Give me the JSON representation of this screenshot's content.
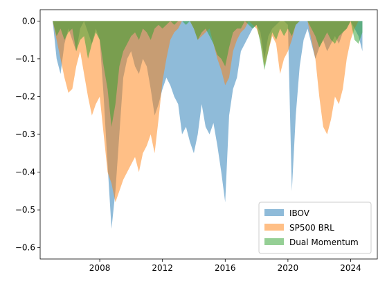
{
  "chart_data": {
    "type": "area",
    "title": "",
    "xlabel": "",
    "ylabel": "",
    "xlim": [
      2004.2,
      2025.7
    ],
    "ylim": [
      -0.63,
      0.03
    ],
    "grid": false,
    "legend_position": "lower-right",
    "x_ticks": [
      2008,
      2012,
      2016,
      2020,
      2024
    ],
    "x_tick_labels": [
      "2008",
      "2012",
      "2016",
      "2020",
      "2024"
    ],
    "y_ticks": [
      0.0,
      -0.1,
      -0.2,
      -0.3,
      -0.4,
      -0.5,
      -0.6
    ],
    "y_tick_labels": [
      "0.0",
      "−0.1",
      "−0.2",
      "−0.3",
      "−0.4",
      "−0.5",
      "−0.6"
    ],
    "x": [
      2005.0,
      2005.25,
      2005.5,
      2005.75,
      2006.0,
      2006.25,
      2006.5,
      2006.75,
      2007.0,
      2007.25,
      2007.5,
      2007.75,
      2008.0,
      2008.25,
      2008.5,
      2008.75,
      2009.0,
      2009.25,
      2009.5,
      2009.75,
      2010.0,
      2010.25,
      2010.5,
      2010.75,
      2011.0,
      2011.25,
      2011.5,
      2011.75,
      2012.0,
      2012.25,
      2012.5,
      2012.75,
      2013.0,
      2013.25,
      2013.5,
      2013.75,
      2014.0,
      2014.25,
      2014.5,
      2014.75,
      2015.0,
      2015.25,
      2015.5,
      2015.75,
      2016.0,
      2016.25,
      2016.5,
      2016.75,
      2017.0,
      2017.25,
      2017.5,
      2017.75,
      2018.0,
      2018.25,
      2018.5,
      2018.75,
      2019.0,
      2019.25,
      2019.5,
      2019.75,
      2020.0,
      2020.25,
      2020.5,
      2020.75,
      2021.0,
      2021.25,
      2021.5,
      2021.75,
      2022.0,
      2022.25,
      2022.5,
      2022.75,
      2023.0,
      2023.25,
      2023.5,
      2023.75,
      2024.0,
      2024.25,
      2024.5,
      2024.75
    ],
    "series": [
      {
        "name": "IBOV",
        "color": "#1f77b4",
        "values": [
          0.0,
          -0.1,
          -0.14,
          -0.06,
          -0.02,
          -0.05,
          -0.08,
          -0.02,
          0.0,
          -0.03,
          -0.06,
          -0.02,
          -0.05,
          -0.2,
          -0.38,
          -0.55,
          -0.45,
          -0.3,
          -0.15,
          -0.1,
          -0.08,
          -0.12,
          -0.14,
          -0.1,
          -0.12,
          -0.18,
          -0.25,
          -0.22,
          -0.18,
          -0.15,
          -0.17,
          -0.2,
          -0.22,
          -0.3,
          -0.28,
          -0.32,
          -0.35,
          -0.3,
          -0.22,
          -0.28,
          -0.3,
          -0.27,
          -0.33,
          -0.4,
          -0.48,
          -0.25,
          -0.18,
          -0.15,
          -0.08,
          -0.06,
          -0.04,
          -0.02,
          -0.01,
          -0.03,
          -0.1,
          -0.04,
          -0.02,
          -0.01,
          -0.0,
          -0.0,
          -0.01,
          -0.45,
          -0.25,
          -0.12,
          -0.05,
          -0.02,
          -0.06,
          -0.1,
          -0.07,
          -0.05,
          -0.08,
          -0.06,
          -0.04,
          -0.06,
          -0.03,
          -0.02,
          -0.0,
          -0.02,
          -0.04,
          -0.08
        ]
      },
      {
        "name": "SP500 BRL",
        "color": "#ff7f0e",
        "values": [
          0.0,
          -0.05,
          -0.1,
          -0.15,
          -0.19,
          -0.18,
          -0.12,
          -0.08,
          -0.14,
          -0.2,
          -0.25,
          -0.22,
          -0.2,
          -0.3,
          -0.4,
          -0.43,
          -0.48,
          -0.45,
          -0.42,
          -0.4,
          -0.38,
          -0.36,
          -0.4,
          -0.35,
          -0.33,
          -0.3,
          -0.35,
          -0.26,
          -0.16,
          -0.1,
          -0.05,
          -0.03,
          -0.02,
          -0.0,
          -0.0,
          -0.0,
          -0.02,
          -0.05,
          -0.04,
          -0.03,
          -0.02,
          -0.06,
          -0.1,
          -0.13,
          -0.17,
          -0.15,
          -0.08,
          -0.05,
          -0.03,
          -0.02,
          -0.0,
          -0.01,
          -0.02,
          -0.05,
          -0.12,
          -0.08,
          -0.04,
          -0.06,
          -0.14,
          -0.1,
          -0.08,
          -0.05,
          -0.01,
          -0.0,
          -0.0,
          -0.0,
          -0.05,
          -0.1,
          -0.2,
          -0.28,
          -0.3,
          -0.26,
          -0.2,
          -0.22,
          -0.18,
          -0.1,
          -0.05,
          -0.02,
          -0.0,
          -0.0
        ]
      },
      {
        "name": "Dual Momentum",
        "color": "#2ca02c",
        "values": [
          0.0,
          -0.04,
          -0.02,
          -0.05,
          -0.03,
          -0.02,
          -0.08,
          -0.05,
          -0.04,
          -0.1,
          -0.06,
          -0.03,
          -0.05,
          -0.12,
          -0.18,
          -0.28,
          -0.22,
          -0.12,
          -0.08,
          -0.06,
          -0.04,
          -0.03,
          -0.05,
          -0.02,
          -0.03,
          -0.05,
          -0.02,
          -0.01,
          -0.02,
          -0.01,
          -0.0,
          -0.01,
          -0.0,
          -0.0,
          -0.01,
          -0.0,
          -0.02,
          -0.05,
          -0.03,
          -0.02,
          -0.04,
          -0.06,
          -0.09,
          -0.1,
          -0.12,
          -0.07,
          -0.03,
          -0.02,
          -0.02,
          -0.0,
          -0.01,
          -0.02,
          -0.01,
          -0.06,
          -0.13,
          -0.08,
          -0.03,
          -0.05,
          -0.02,
          -0.04,
          -0.02,
          -0.04,
          -0.01,
          -0.0,
          -0.0,
          -0.0,
          -0.02,
          -0.04,
          -0.07,
          -0.05,
          -0.03,
          -0.05,
          -0.06,
          -0.04,
          -0.03,
          -0.02,
          -0.0,
          -0.05,
          -0.06,
          -0.03
        ]
      }
    ]
  }
}
